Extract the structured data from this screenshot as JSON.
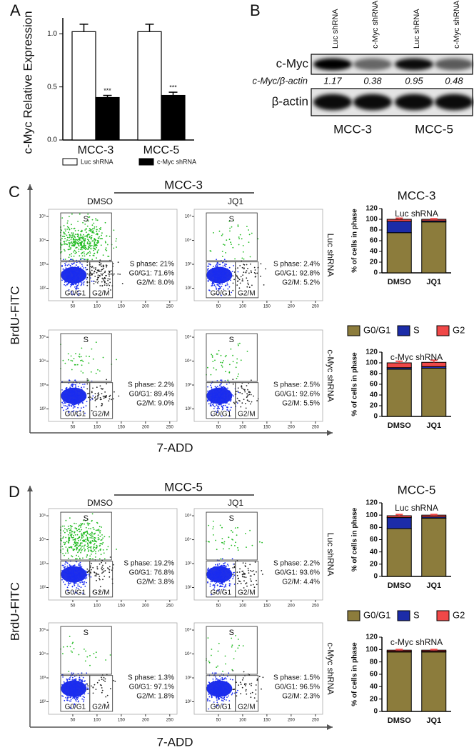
{
  "panel_labels": [
    "A",
    "B",
    "C",
    "D"
  ],
  "chart_data": [
    {
      "type": "bar",
      "y_label": "c-Myc Relative Expression",
      "categories": [
        "MCC-3",
        "MCC-5"
      ],
      "series": [
        {
          "name": "Luc shRNA",
          "color": "#ffffff",
          "values": [
            1.02,
            1.02
          ],
          "errors": [
            0.07,
            0.07
          ]
        },
        {
          "name": "c-Myc shRNA",
          "color": "#000000",
          "values": [
            0.4,
            0.42
          ],
          "errors": [
            0.02,
            0.03
          ],
          "annotations": [
            "***",
            "***"
          ]
        }
      ],
      "ylim": [
        0,
        1.15
      ],
      "yticks": [
        {
          "value": 0,
          "label": "0.0"
        },
        0.5,
        {
          "value": 1,
          "label": "1.0"
        }
      ]
    },
    {
      "type": "stacked_bar",
      "title": "MCC-3",
      "subtitle": "Luc shRNA",
      "y_label": "% of cells in phase",
      "categories": [
        "DMSO",
        "JQ1"
      ],
      "series": [
        {
          "name": "G0/G1",
          "color": "#8c7c3c",
          "values": [
            75,
            95
          ]
        },
        {
          "name": "S",
          "color": "#1c2ca8",
          "values": [
            21,
            2
          ]
        },
        {
          "name": "G2",
          "color": "#f04848",
          "values": [
            4,
            3
          ],
          "errors": [
            2,
            1
          ]
        }
      ],
      "ylim": [
        0,
        120
      ],
      "yticks": [
        0,
        20,
        40,
        60,
        80,
        100,
        120
      ]
    },
    {
      "type": "stacked_bar",
      "subtitle": "c-Myc shRNA",
      "y_label": "% of cells in phase",
      "categories": [
        "DMSO",
        "JQ1"
      ],
      "legend": "top",
      "series": [
        {
          "name": "G0/G1",
          "color": "#8c7c3c",
          "values": [
            88,
            90
          ]
        },
        {
          "name": "S",
          "color": "#1c2ca8",
          "values": [
            3,
            3
          ]
        },
        {
          "name": "G2",
          "color": "#f04848",
          "values": [
            9,
            8
          ],
          "errors": [
            3,
            4
          ]
        }
      ],
      "ylim": [
        0,
        120
      ],
      "yticks": [
        0,
        20,
        40,
        60,
        80,
        100,
        120
      ]
    },
    {
      "type": "stacked_bar",
      "title": "MCC-5",
      "subtitle": "Luc shRNA",
      "y_label": "% of cells in phase",
      "categories": [
        "DMSO",
        "JQ1"
      ],
      "series": [
        {
          "name": "G0/G1",
          "color": "#8c7c3c",
          "values": [
            78,
            95
          ]
        },
        {
          "name": "S",
          "color": "#1c2ca8",
          "values": [
            18,
            2
          ]
        },
        {
          "name": "G2",
          "color": "#f04848",
          "values": [
            3,
            3
          ],
          "errors": [
            2,
            1
          ]
        }
      ],
      "ylim": [
        0,
        120
      ],
      "yticks": [
        0,
        20,
        40,
        60,
        80,
        100,
        120
      ]
    },
    {
      "type": "stacked_bar",
      "subtitle": "c-Myc shRNA",
      "y_label": "% of cells in phase",
      "categories": [
        "DMSO",
        "JQ1"
      ],
      "legend": "top",
      "series": [
        {
          "name": "G0/G1",
          "color": "#8c7c3c",
          "values": [
            96,
            96
          ]
        },
        {
          "name": "S",
          "color": "#1c2ca8",
          "values": [
            1,
            1
          ]
        },
        {
          "name": "G2",
          "color": "#f04848",
          "values": [
            2,
            2
          ],
          "errors": [
            1,
            1
          ]
        }
      ],
      "ylim": [
        0,
        120
      ],
      "yticks": [
        0,
        20,
        40,
        60,
        80,
        100,
        120
      ]
    }
  ],
  "blot": {
    "lanes": [
      "Luc shRNA",
      "c-Myc shRNA",
      "Luc shRNA",
      "c-Myc shRNA"
    ],
    "rows": [
      "c-Myc",
      "β-actin"
    ],
    "ratio_label": "c-Myc/β-actin",
    "ratios": [
      1.17,
      0.38,
      0.95,
      0.48
    ],
    "groups": [
      "MCC-3",
      "MCC-5"
    ]
  },
  "flow_panels": [
    {
      "title": "MCC-3",
      "columns": [
        "DMSO",
        "JQ1"
      ],
      "rows": [
        "Luc shRNA",
        "c-Myc shRNA"
      ],
      "x_label": "7-ADD",
      "y_label": "BrdU-FITC",
      "xlim": [
        0,
        265
      ],
      "xticks": [
        50,
        100,
        150,
        200,
        250
      ],
      "ylim": [
        30,
        200000
      ],
      "log": true,
      "yticks": [
        {
          "value": 100,
          "label": "10²"
        },
        {
          "value": 1000,
          "label": "10³"
        },
        {
          "value": 10000,
          "label": "10⁴"
        },
        {
          "value": 100000,
          "label": "10⁵"
        }
      ],
      "plots": [
        {
          "gates": [
            "S",
            "G0/G1",
            "G2/M"
          ],
          "stats": [
            "S phase: 21%",
            "G0/G1: 71.6%",
            "G2/M: 8.0%"
          ]
        },
        {
          "gates": [
            "S",
            "G0/G1",
            "G2/M"
          ],
          "stats": [
            "S phase: 2.4%",
            "G0/G1: 92.8%",
            "G2/M: 5.2%"
          ]
        },
        {
          "gates": [
            "S",
            "G0/G1",
            "G2/M"
          ],
          "stats": [
            "S phase: 2.2%",
            "G0/G1: 89.4%",
            "G2/M: 9.0%"
          ]
        },
        {
          "gates": [
            "S",
            "G0/G1",
            "G2/M"
          ],
          "stats": [
            "S phase: 2.5%",
            "G0/G1: 92.6%",
            "G2/M: 5.5%"
          ]
        }
      ]
    },
    {
      "title": "MCC-5",
      "columns": [
        "DMSO",
        "JQ1"
      ],
      "rows": [
        "Luc shRNA",
        "c-Myc shRNA"
      ],
      "x_label": "7-ADD",
      "y_label": "BrdU-FITC",
      "xlim": [
        0,
        265
      ],
      "xticks": [
        50,
        100,
        150,
        200,
        250
      ],
      "ylim": [
        30,
        200000
      ],
      "log": true,
      "yticks": [
        {
          "value": 100,
          "label": "10²"
        },
        {
          "value": 1000,
          "label": "10³"
        },
        {
          "value": 10000,
          "label": "10⁴"
        },
        {
          "value": 100000,
          "label": "10⁵"
        }
      ],
      "plots": [
        {
          "gates": [
            "S",
            "G0/G1",
            "G2/M"
          ],
          "stats": [
            "S phase: 19.2%",
            "G0/G1: 76.8%",
            "G2/M: 3.8%"
          ]
        },
        {
          "gates": [
            "S",
            "G0/G1",
            "G2/M"
          ],
          "stats": [
            "S phase: 2.2%",
            "G0/G1: 93.6%",
            "G2/M: 4.4%"
          ]
        },
        {
          "gates": [
            "S",
            "G0/G1",
            "G2/M"
          ],
          "stats": [
            "S phase: 1.3%",
            "G0/G1: 97.1%",
            "G2/M: 1.8%"
          ]
        },
        {
          "gates": [
            "S",
            "G0/G1",
            "G2/M"
          ],
          "stats": [
            "S phase: 1.5%",
            "G0/G1: 96.5%",
            "G2/M: 2.3%"
          ]
        }
      ]
    }
  ]
}
